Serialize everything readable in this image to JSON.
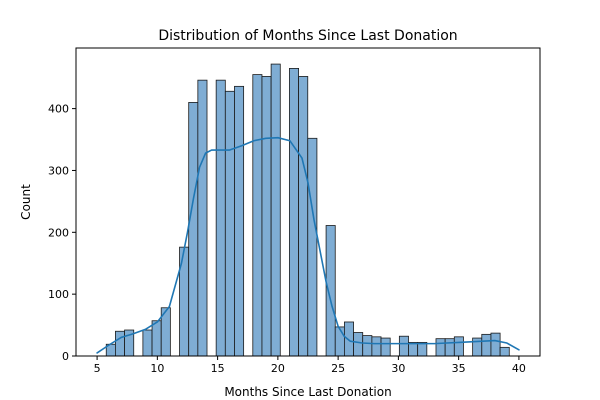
{
  "chart_data": {
    "type": "bar",
    "title": "Distribution of Months Since Last Donation",
    "xlabel": "Months Since Last Donation",
    "ylabel": "Count",
    "xlim": [
      3.25,
      41.75
    ],
    "ylim": [
      0,
      498
    ],
    "xticks": [
      5,
      10,
      15,
      20,
      25,
      30,
      35,
      40
    ],
    "yticks": [
      0,
      100,
      200,
      300,
      400
    ],
    "bin_start": 5,
    "bin_width": 0.76,
    "values": [
      0,
      19,
      40,
      42,
      0,
      42,
      57,
      78,
      0,
      176,
      410,
      446,
      0,
      446,
      428,
      436,
      0,
      455,
      452,
      472,
      0,
      465,
      452,
      352,
      0,
      211,
      47,
      55,
      38,
      33,
      31,
      29,
      0,
      32,
      22,
      22,
      0,
      28,
      28,
      31,
      0,
      29,
      35,
      37,
      14
    ],
    "kde": {
      "x": [
        5,
        6,
        7,
        8,
        9,
        10,
        11,
        12,
        12.5,
        13,
        13.5,
        14,
        14.5,
        15,
        16,
        17,
        18,
        19,
        20,
        21,
        22,
        22.5,
        23,
        24,
        24.5,
        25,
        25.5,
        26,
        27,
        28,
        29,
        30,
        31,
        32,
        33,
        34,
        35,
        36,
        37,
        38,
        39,
        40
      ],
      "y": [
        5,
        18,
        30,
        36,
        43,
        55,
        80,
        150,
        200,
        255,
        305,
        328,
        333,
        333,
        333,
        340,
        348,
        352,
        353,
        348,
        320,
        280,
        220,
        120,
        80,
        48,
        32,
        24,
        21,
        20,
        20,
        20,
        20,
        20,
        20,
        21,
        22,
        23,
        24,
        25,
        21,
        10
      ]
    },
    "colors": {
      "bar_fill": "#7fadd4",
      "bar_edge": "#1a1a1a",
      "kde_line": "#1f77b4"
    },
    "grid": false,
    "legend": "none"
  }
}
